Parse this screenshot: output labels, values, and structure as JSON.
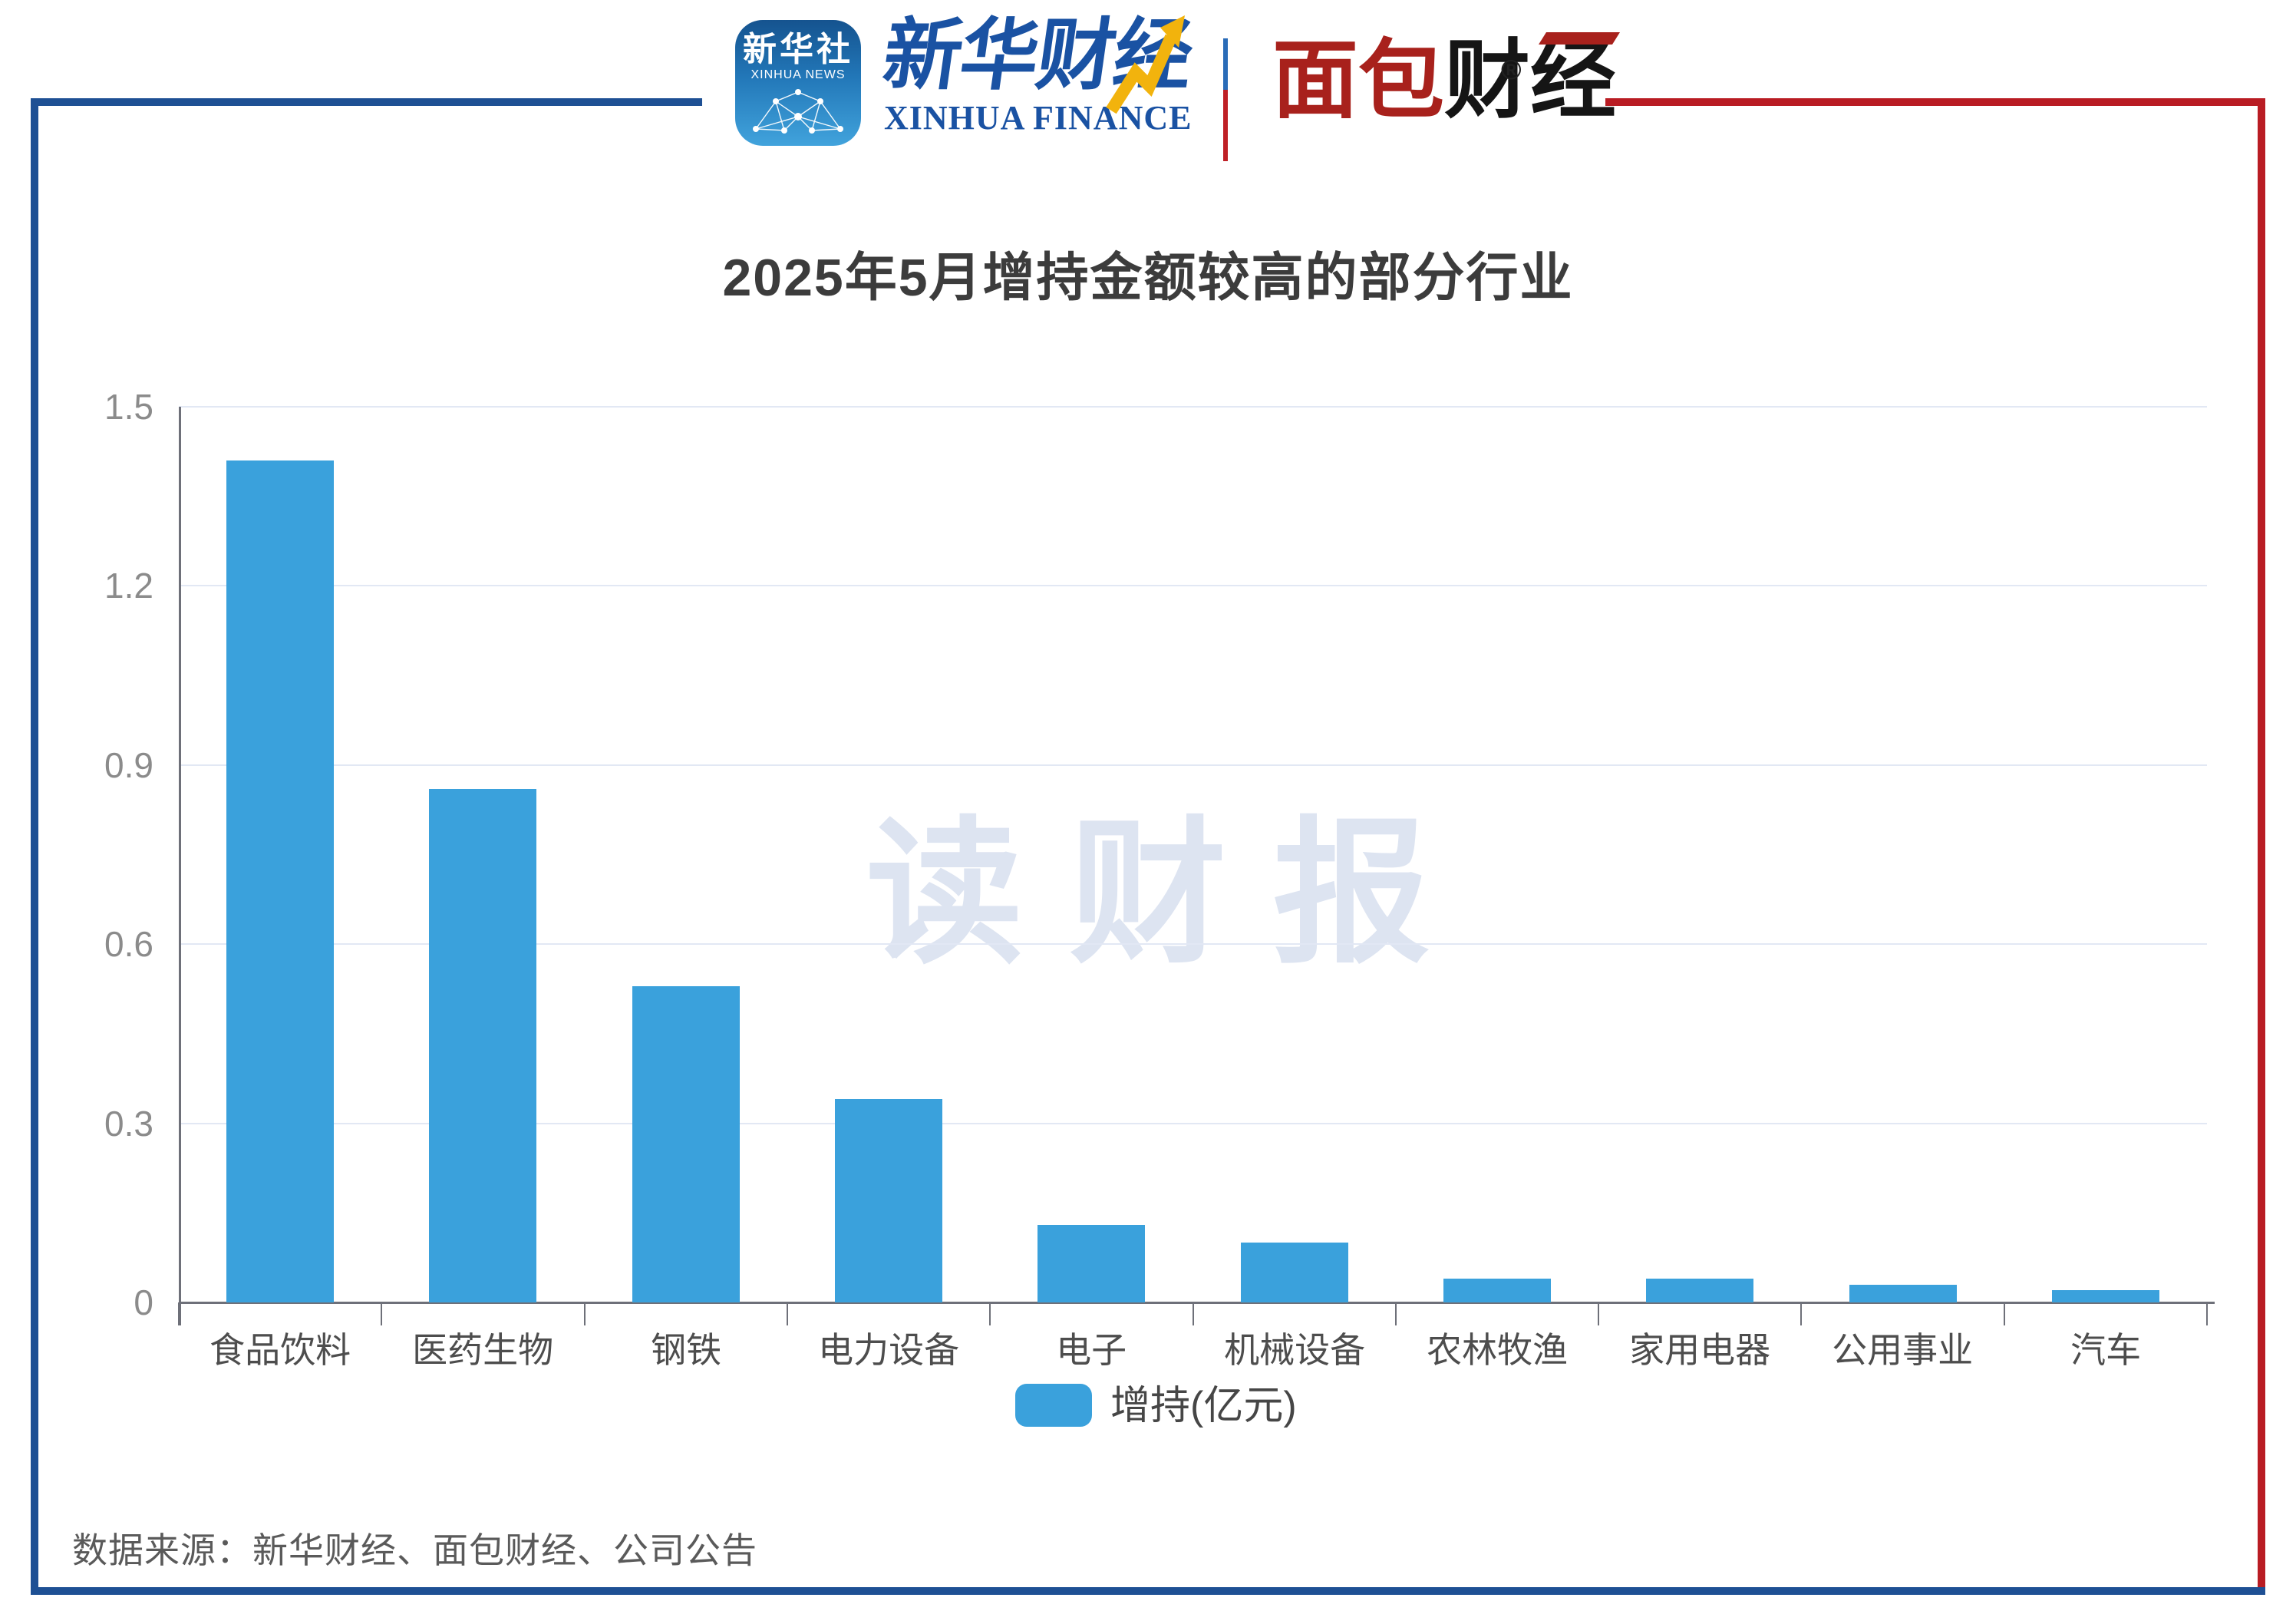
{
  "header": {
    "xinhua_icon": {
      "title": "新华社",
      "subtitle": "XINHUA NEWS"
    },
    "xinhua_finance": {
      "cn": "新华财经",
      "en": "XINHUA FINANCE"
    },
    "mianbao": {
      "cn_red": "面包",
      "cn_black": "财经",
      "reg": "®"
    }
  },
  "title": "2025年5月增持金额较高的部分行业",
  "watermark": "读财报",
  "legend": {
    "label": "增持(亿元)"
  },
  "footer": {
    "source": "数据来源：新华财经、面包财经、公司公告"
  },
  "colors": {
    "frame-blue": "#1e5094",
    "frame-red": "#b91c23",
    "bar": "#3aa1dc",
    "grid": "#e2e8f4",
    "axis": "#6e7079",
    "title-text": "#3c3c3c",
    "tick-text": "#8b8b8b",
    "category-text": "#4d4d4d",
    "watermark": "#dde4f1",
    "footer-text": "#5a5a5a",
    "legend-text": "#464646",
    "xinhua-blue": "#1a52a3",
    "mianbao-red": "#a8211c",
    "arrow-yellow": "#f2b30d"
  },
  "chart_data": {
    "type": "bar",
    "title": "2025年5月增持金额较高的部分行业",
    "categories": [
      "食品饮料",
      "医药生物",
      "钢铁",
      "电力设备",
      "电子",
      "机械设备",
      "农林牧渔",
      "家用电器",
      "公用事业",
      "汽车"
    ],
    "values": [
      1.41,
      0.86,
      0.53,
      0.34,
      0.13,
      0.1,
      0.04,
      0.04,
      0.03,
      0.02
    ],
    "series_name": "增持(亿元)",
    "xlabel": "",
    "ylabel": "",
    "ylim": [
      0,
      1.5
    ],
    "yticks": [
      0,
      0.3,
      0.6,
      0.9,
      1.2,
      1.5
    ],
    "grid": true,
    "legend_position": "bottom",
    "bar_color": "#3aa1dc"
  }
}
